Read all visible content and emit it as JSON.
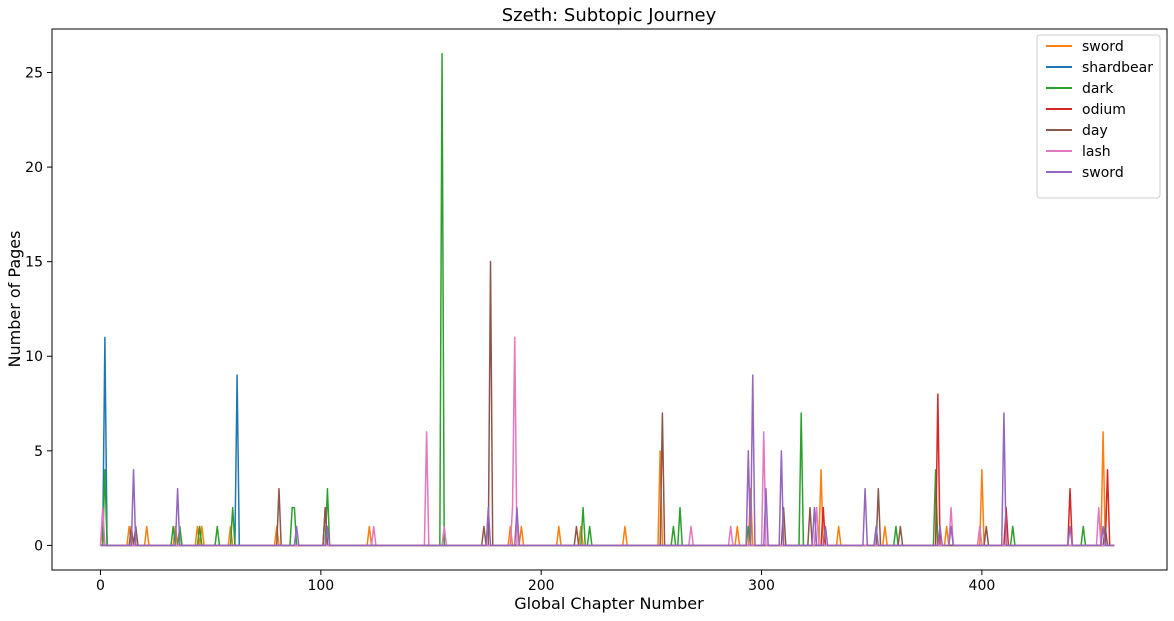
{
  "chart_data": {
    "type": "line",
    "title": "Szeth: Subtopic Journey",
    "xlabel": "Global Chapter Number",
    "ylabel": "Number of Pages",
    "xlim": [
      -22,
      484
    ],
    "ylim": [
      -1.3,
      27.3
    ],
    "x_ticks": [
      0,
      100,
      200,
      300,
      400
    ],
    "y_ticks": [
      0,
      5,
      10,
      15,
      20,
      25
    ],
    "x_range": [
      0,
      460
    ],
    "grid": false,
    "legend_position": "top-right",
    "series": [
      {
        "name": "sword",
        "color": "#ff7f0e",
        "points": [
          [
            1,
            1
          ],
          [
            13,
            1
          ],
          [
            21,
            1
          ],
          [
            34,
            1
          ],
          [
            44,
            1
          ],
          [
            46,
            1
          ],
          [
            59,
            1
          ],
          [
            80,
            1
          ],
          [
            122,
            1
          ],
          [
            186,
            1
          ],
          [
            191,
            1
          ],
          [
            208,
            1
          ],
          [
            218,
            1
          ],
          [
            238,
            1
          ],
          [
            254,
            5
          ],
          [
            289,
            1
          ],
          [
            295,
            3
          ],
          [
            327,
            4
          ],
          [
            335,
            1
          ],
          [
            356,
            1
          ],
          [
            384,
            1
          ],
          [
            400,
            4
          ],
          [
            455,
            6
          ]
        ]
      },
      {
        "name": "shardbear",
        "color": "#1f77b4",
        "points": [
          [
            2,
            11
          ],
          [
            62,
            9
          ]
        ]
      },
      {
        "name": "dark",
        "color": "#2ca02c",
        "points": [
          [
            2,
            4
          ],
          [
            33,
            1
          ],
          [
            36,
            1
          ],
          [
            45,
            1
          ],
          [
            53,
            1
          ],
          [
            60,
            2
          ],
          [
            87,
            2
          ],
          [
            88,
            2
          ],
          [
            103,
            3
          ],
          [
            155,
            26
          ],
          [
            219,
            2
          ],
          [
            222,
            1
          ],
          [
            260,
            1
          ],
          [
            263,
            2
          ],
          [
            294,
            1
          ],
          [
            318,
            7
          ],
          [
            361,
            1
          ],
          [
            379,
            4
          ],
          [
            414,
            1
          ],
          [
            446,
            1
          ]
        ]
      },
      {
        "name": "odium",
        "color": "#d62728",
        "points": [
          [
            102,
            2
          ],
          [
            328,
            2
          ],
          [
            380,
            8
          ],
          [
            411,
            2
          ],
          [
            440,
            3
          ],
          [
            457,
            4
          ]
        ]
      },
      {
        "name": "day",
        "color": "#8c564b",
        "points": [
          [
            14,
            1
          ],
          [
            16,
            1
          ],
          [
            81,
            3
          ],
          [
            102,
            2
          ],
          [
            174,
            1
          ],
          [
            177,
            15
          ],
          [
            216,
            1
          ],
          [
            255,
            7
          ],
          [
            310,
            2
          ],
          [
            322,
            2
          ],
          [
            353,
            3
          ],
          [
            363,
            1
          ],
          [
            402,
            1
          ],
          [
            456,
            1
          ]
        ]
      },
      {
        "name": "lash",
        "color": "#e377c2",
        "points": [
          [
            1,
            2
          ],
          [
            124,
            1
          ],
          [
            148,
            6
          ],
          [
            156,
            1
          ],
          [
            187,
            2
          ],
          [
            188,
            11
          ],
          [
            268,
            1
          ],
          [
            286,
            1
          ],
          [
            301,
            6
          ],
          [
            325,
            2
          ],
          [
            386,
            2
          ],
          [
            399,
            1
          ],
          [
            453,
            2
          ]
        ]
      },
      {
        "name": "sword",
        "color": "#9467bd",
        "points": [
          [
            15,
            4
          ],
          [
            35,
            3
          ],
          [
            89,
            1
          ],
          [
            103,
            1
          ],
          [
            176,
            2
          ],
          [
            189,
            2
          ],
          [
            294,
            5
          ],
          [
            296,
            9
          ],
          [
            302,
            3
          ],
          [
            309,
            5
          ],
          [
            324,
            2
          ],
          [
            329,
            1
          ],
          [
            347,
            3
          ],
          [
            352,
            1
          ],
          [
            381,
            1
          ],
          [
            386,
            1
          ],
          [
            410,
            7
          ],
          [
            440,
            1
          ],
          [
            455,
            1
          ]
        ]
      }
    ]
  }
}
